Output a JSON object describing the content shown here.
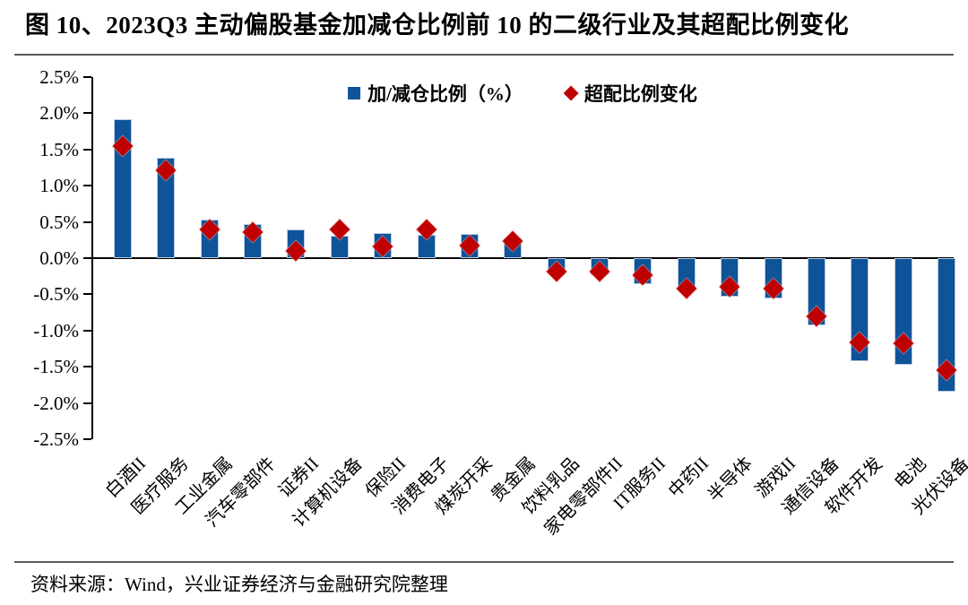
{
  "title": "图 10、2023Q3 主动偏股基金加减仓比例前 10 的二级行业及其超配比例变化",
  "source": "资料来源：Wind，兴业证券经济与金融研究院整理",
  "legend": {
    "bar_label": "加/减仓比例（%）",
    "diamond_label": "超配比例变化"
  },
  "colors": {
    "bar": "#0f5399",
    "bar_edge": "#b8cce4",
    "diamond": "#c00000",
    "axis": "#000000",
    "rule": "#595959"
  },
  "chart_data": {
    "type": "bar",
    "subtype": "bar-with-diamond-markers",
    "categories": [
      "白酒II",
      "医疗服务",
      "工业金属",
      "汽车零部件",
      "证券II",
      "计算机设备",
      "保险II",
      "消费电子",
      "煤炭开采",
      "贵金属",
      "饮料乳品",
      "家电零部件II",
      "IT服务II",
      "中药II",
      "半导体",
      "游戏II",
      "通信设备",
      "软件开发",
      "电池",
      "光伏设备"
    ],
    "series": [
      {
        "name": "加/减仓比例（%）",
        "type": "bar",
        "values": [
          1.92,
          1.38,
          0.53,
          0.47,
          0.4,
          0.31,
          0.35,
          0.32,
          0.33,
          0.27,
          -0.2,
          -0.24,
          -0.36,
          -0.44,
          -0.53,
          -0.56,
          -0.93,
          -1.42,
          -1.47,
          -1.85
        ]
      },
      {
        "name": "超配比例变化",
        "type": "scatter",
        "values": [
          1.55,
          1.21,
          0.4,
          0.36,
          0.1,
          0.39,
          0.16,
          0.4,
          0.17,
          0.24,
          -0.18,
          -0.19,
          -0.23,
          -0.42,
          -0.4,
          -0.42,
          -0.8,
          -1.16,
          -1.18,
          -1.55
        ]
      }
    ],
    "title": "",
    "xlabel": "",
    "ylabel": "",
    "ylim": [
      -2.5,
      2.5
    ],
    "y_tick_step": 0.5,
    "y_tick_labels": [
      "2.5%",
      "2.0%",
      "1.5%",
      "1.0%",
      "0.5%",
      "0.0%",
      "-0.5%",
      "-1.0%",
      "-1.5%",
      "-2.0%",
      "-2.5%"
    ],
    "grid": false,
    "legend_position": "top-center"
  }
}
